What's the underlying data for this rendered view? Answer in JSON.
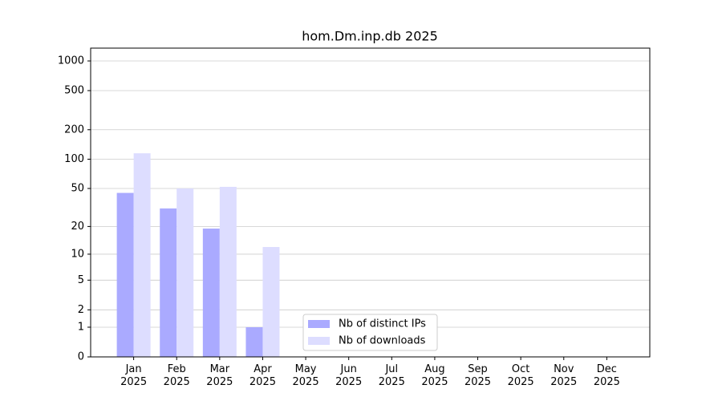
{
  "chart_data": {
    "type": "bar",
    "title": "hom.Dm.inp.db 2025",
    "categories": [
      "Jan\n2025",
      "Feb\n2025",
      "Mar\n2025",
      "Apr\n2025",
      "May\n2025",
      "Jun\n2025",
      "Jul\n2025",
      "Aug\n2025",
      "Sep\n2025",
      "Oct\n2025",
      "Nov\n2025",
      "Dec\n2025"
    ],
    "series": [
      {
        "name": "Nb of distinct IPs",
        "color": "#aaaaff",
        "values": [
          45,
          31,
          19,
          1,
          null,
          null,
          null,
          null,
          null,
          null,
          null,
          null
        ]
      },
      {
        "name": "Nb of downloads",
        "color": "#ddddff",
        "values": [
          115,
          50,
          52,
          12,
          null,
          null,
          null,
          null,
          null,
          null,
          null,
          null
        ]
      }
    ],
    "yscale": "symlog",
    "ylim": [
      0,
      1350
    ],
    "yticks": [
      0,
      1,
      2,
      5,
      10,
      20,
      50,
      100,
      200,
      500,
      1000
    ],
    "grid": true,
    "legend": "lower center"
  }
}
